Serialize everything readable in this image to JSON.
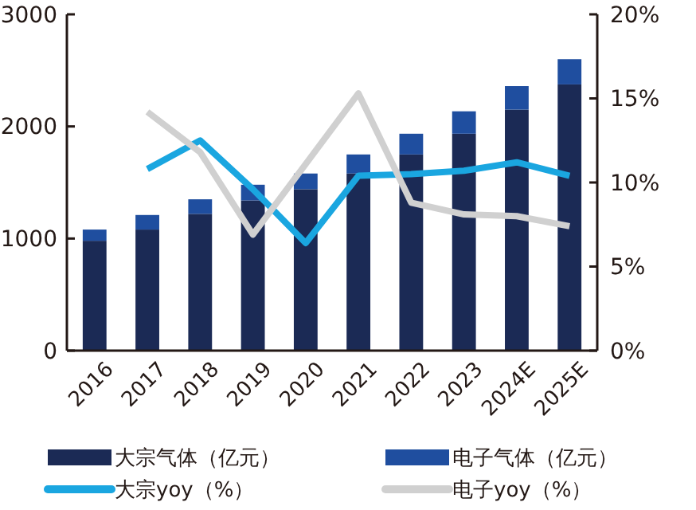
{
  "chart_data": {
    "type": "bar",
    "stacked": true,
    "categories": [
      "2016",
      "2017",
      "2018",
      "2019",
      "2020",
      "2021",
      "2022",
      "2023",
      "2024E",
      "2025E"
    ],
    "series": [
      {
        "name": "大宗气体（亿元）",
        "color": "#1b2a55",
        "values": [
          980,
          1080,
          1220,
          1340,
          1440,
          1580,
          1750,
          1935,
          2150,
          2375
        ]
      },
      {
        "name": "电子气体（亿元）",
        "color": "#1f4e9f",
        "values": [
          100,
          130,
          130,
          140,
          140,
          170,
          185,
          200,
          210,
          225
        ]
      },
      {
        "name": "大宗yoy（%）",
        "type": "line",
        "axis": "y2",
        "color": "#1aa6e0",
        "values": [
          null,
          10.8,
          12.5,
          9.6,
          6.4,
          10.4,
          10.5,
          10.7,
          11.2,
          10.4
        ]
      },
      {
        "name": "电子yoy（%）",
        "type": "line",
        "axis": "y2",
        "color": "#d0d0d0",
        "values": [
          null,
          14.2,
          11.8,
          6.9,
          11.1,
          15.3,
          8.8,
          8.1,
          8.0,
          7.4
        ]
      }
    ],
    "ylim": [
      0,
      3000
    ],
    "yticks": [
      0,
      1000,
      2000,
      3000
    ],
    "y2lim": [
      0,
      20
    ],
    "y2ticks": [
      {
        "value": 0,
        "label": "0%"
      },
      {
        "value": 5,
        "label": "5%"
      },
      {
        "value": 10,
        "label": "10%"
      },
      {
        "value": 15,
        "label": "15%"
      },
      {
        "value": 20,
        "label": "20%"
      }
    ],
    "legend": "bottom",
    "grid": false,
    "marker": "none",
    "line_style": "solid"
  }
}
